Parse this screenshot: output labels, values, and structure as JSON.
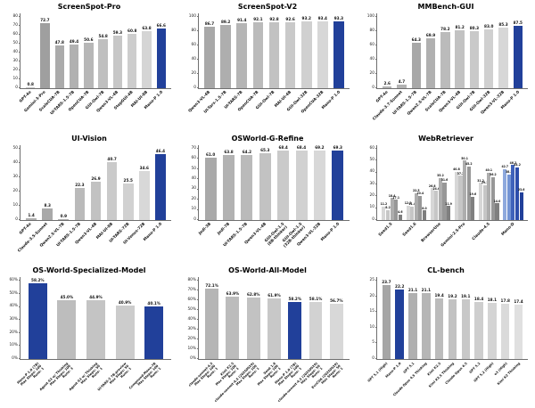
{
  "page": {
    "background": "#ffffff",
    "accent_blue": "#21409a",
    "axis_color": "#6f6f6f"
  },
  "chart_data": [
    {
      "type": "bar",
      "title": "ScreenSpot-Pro",
      "ymax": 84,
      "yticks": [
        0,
        10,
        20,
        30,
        40,
        50,
        60,
        70,
        80
      ],
      "tick_suffix": "",
      "value_suffix": "",
      "categories": [
        "GPT-4o",
        "Gemini-3-Pro",
        "ScaleCUA-7B",
        "UI-TARS-1.5-7B",
        "OpenCUA-7B",
        "GUI-Owl-7B",
        "Qwen3-VL-4B",
        "StepGUI-4B",
        "MAI-UI-8B",
        "Mano-P 1.0"
      ],
      "values": [
        0.8,
        72.7,
        47.8,
        49.4,
        50.6,
        54.8,
        59.3,
        60.8,
        63.8,
        66.6
      ],
      "colors": [
        "#c7c7c7",
        "#9f9f9f",
        "#ababab",
        "#b1b1b1",
        "#b7b7b7",
        "#bfbfbf",
        "#c7c7c7",
        "#cdcdcd",
        "#d5d5d5",
        "#21409a"
      ]
    },
    {
      "type": "bar",
      "title": "ScreenSpot-V2",
      "ymax": 105,
      "yticks": [
        0,
        20,
        40,
        60,
        80,
        100
      ],
      "tick_suffix": "",
      "value_suffix": "",
      "categories": [
        "Qwen3-VL-4B",
        "UI-Tars-1.5-7B",
        "UI-TARS-7B",
        "OpenCUA-7B",
        "GUI-Owl-7B",
        "MAI-UI-4B",
        "GUI-Owl-32B",
        "OpenCUA-32B",
        "Mano-P 1.0"
      ],
      "values": [
        86.7,
        89.2,
        91.4,
        92.1,
        92.8,
        92.6,
        93.2,
        93.4,
        93.3
      ],
      "colors": [
        "#a8a8a8",
        "#aeaeae",
        "#b5b5b5",
        "#bbbbbb",
        "#c2c2c2",
        "#c9c9c9",
        "#d0d0d0",
        "#d7d7d7",
        "#21409a"
      ]
    },
    {
      "type": "bar",
      "title": "MMBench-GUI",
      "ymax": 105,
      "yticks": [
        0,
        20,
        40,
        60,
        80,
        100
      ],
      "tick_suffix": "",
      "value_suffix": "",
      "categories": [
        "GPT-4o",
        "Claude-3.7-Sonnet",
        "UI-TARS-1.5-7B",
        "Qwen2.5-VL-7B",
        "ScaleCUA-7B",
        "Qwen3-VL-4B",
        "GUI-Owl-7B",
        "GUI-Owl-32B",
        "Qwen3-VL-32B",
        "Mano-P 1.0"
      ],
      "values": [
        2.6,
        4.7,
        64.3,
        69.9,
        78.2,
        81.2,
        80.3,
        83.0,
        85.3,
        87.5
      ],
      "colors": [
        "#b3b3b3",
        "#b3b3b3",
        "#a8a8a8",
        "#b0b0b0",
        "#bbbbbb",
        "#c2c2c2",
        "#c9c9c9",
        "#d0d0d0",
        "#d7d7d7",
        "#21409a"
      ]
    },
    {
      "type": "bar",
      "title": "UI-Vision",
      "ymax": 52.5,
      "yticks": [
        0,
        10,
        20,
        30,
        40,
        50
      ],
      "tick_suffix": "",
      "value_suffix": "",
      "categories": [
        "GPT-4o",
        "Claude-3.5-Sonnet",
        "Qwen2.5-VL-7B",
        "UI-TARS-1.5-7B",
        "Qwen3-VL-4B",
        "MAI-UI-8B",
        "UI-TARS-72B",
        "UI-Venus-72B",
        "Mano-P 1.0"
      ],
      "values": [
        1.4,
        8.3,
        0.9,
        22.3,
        26.9,
        40.7,
        25.5,
        34.6,
        46.4
      ],
      "colors": [
        "#b0b0b0",
        "#a9a9a9",
        "#b0b0b0",
        "#bababa",
        "#c2c2c2",
        "#cacaca",
        "#d1d1d1",
        "#d8d8d8",
        "#21409a"
      ]
    },
    {
      "type": "bar",
      "title": "OSWorld-G-Refine",
      "ymax": 73.5,
      "yticks": [
        0,
        10,
        20,
        30,
        40,
        50,
        60,
        70
      ],
      "tick_suffix": "",
      "value_suffix": "",
      "categories": [
        "Jedi-3B",
        "Jedi-7B",
        "UI-TARS-1.5-7B",
        "Qwen3-VL-4B",
        "GUI-Owl-1.5\n(8B-thinker)",
        "GUI-Owl-1.5\n(32B-thinker)",
        "Qwen3-VL-32B",
        "Mano-P 1.0"
      ],
      "values": [
        61.0,
        63.8,
        64.2,
        65.3,
        68.4,
        68.4,
        69.2,
        69.3
      ],
      "colors": [
        "#a9a9a9",
        "#b2b2b2",
        "#bababa",
        "#c2c2c2",
        "#cacaca",
        "#d1d1d1",
        "#d8d8d8",
        "#21409a"
      ]
    },
    {
      "type": "grouped-bar",
      "title": "WebRetriever",
      "ymax": 63,
      "yticks": [
        0,
        10,
        20,
        30,
        40,
        50,
        60
      ],
      "tick_suffix": "",
      "value_suffix": "",
      "categories": [
        "Seed1.5",
        "Seed1.6",
        "BrowserUse",
        "Gemini-2.5-Pro",
        "Claude-4.5",
        "Mano-D"
      ],
      "groups": [
        [
          11.2,
          8.2,
          18.4,
          17.1,
          4.6
        ],
        [
          12.2,
          11.4,
          22.5,
          20.4,
          8.0
        ],
        [
          26.8,
          24.6,
          35.2,
          31.6,
          11.9
        ],
        [
          40.8,
          37.2,
          50.1,
          45.2,
          19.6
        ],
        [
          31.2,
          29.2,
          40.1,
          36.2,
          14.0
        ],
        [
          42.7,
          38.2,
          46.2,
          44.2,
          23.6
        ]
      ],
      "series_colors": [
        "#d7d7d7",
        "#c6c6c6",
        "#adadad",
        "#979797",
        "#7f7f7f"
      ],
      "highlight_group": 5,
      "highlight_series_colors": [
        "#8ea9dd",
        "#7394d4",
        "#3f62ba",
        "#2c4dab",
        "#21409a"
      ]
    },
    {
      "type": "bar",
      "title": "OS-World-Specialized-Model",
      "ymax": 63,
      "yticks": [
        0,
        10,
        20,
        30,
        40,
        50,
        60
      ],
      "tick_suffix": "%",
      "value_suffix": "%",
      "categories": [
        "Mano-P 1.0 (7B)\nMax Steps: 100\nRuns: 1",
        "Agent-S3 w/ Thinking\nMax Steps: 100\nRuns: 3",
        "Agent-S3 w/ Thinking\nMax Steps: 50\nRuns: 1",
        "UI-TARS-2 7B-preview\nMax Steps: 50\nRuns: 1",
        "Compound-Mano-7B\nMax Steps: 100\nRuns: 1"
      ],
      "values": [
        58.2,
        45.0,
        44.9,
        40.9,
        40.1
      ],
      "colors": [
        "#21409a",
        "#bdbdbd",
        "#c4c4c4",
        "#cccccc",
        "#21409a"
      ]
    },
    {
      "type": "bar",
      "title": "OS-World-All-Model",
      "ymax": 84,
      "yticks": [
        0,
        10,
        20,
        30,
        40,
        50,
        60,
        70,
        80
      ],
      "tick_suffix": "%",
      "value_suffix": "%",
      "categories": [
        "claude-sonnet-4.5\nMax Steps: 100\nRuns: 1",
        "Kimi K2.5\nMax Steps: 100\nRuns: 1",
        "claude-sonnet-4.5 (20250929)\nMax Steps: 100\nRuns: 1",
        "Seed 1.8\nMax Steps: 100\nRuns: 1",
        "Mano-P 1.0 (7B)\nMax Steps: 100\nRuns: 1",
        "claude-sonnet-4.5 (20250929)\nMax Steps: 50\nRuns: 1",
        "EvoCUA (20250929)\nMax Steps: 50\nRuns: 1"
      ],
      "values": [
        72.1,
        63.9,
        62.8,
        61.9,
        58.2,
        58.1,
        56.7
      ],
      "colors": [
        "#b5b5b5",
        "#bcbcbc",
        "#c2c2c2",
        "#c8c8c8",
        "#21409a",
        "#d2d2d2",
        "#d8d8d8"
      ]
    },
    {
      "type": "bar",
      "title": "CL-bench",
      "ymax": 26.25,
      "yticks": [
        0,
        5,
        10,
        15,
        20,
        25
      ],
      "tick_suffix": "",
      "value_suffix": "",
      "categories": [
        "GPT 5.1 (High)",
        "Mano-P 1.0",
        "GPT 5.1",
        "Claude Opus 4.5 Thinking",
        "Kimi K2.5",
        "Kimi K2.5 Thinking",
        "Claude Opus 4.5",
        "GPT 5.2",
        "GPT 5.2 (High)",
        "o3 (High)",
        "Kimi K2 Thinking"
      ],
      "values": [
        23.7,
        22.2,
        21.1,
        21.1,
        19.4,
        19.2,
        19.1,
        18.4,
        18.1,
        17.8,
        17.4
      ],
      "colors": [
        "#a6a6a6",
        "#21409a",
        "#b0b0b0",
        "#b6b6b6",
        "#bcbcbc",
        "#c2c2c2",
        "#c8c8c8",
        "#cecece",
        "#d4d4d4",
        "#dadada",
        "#e0e0e0"
      ]
    }
  ]
}
